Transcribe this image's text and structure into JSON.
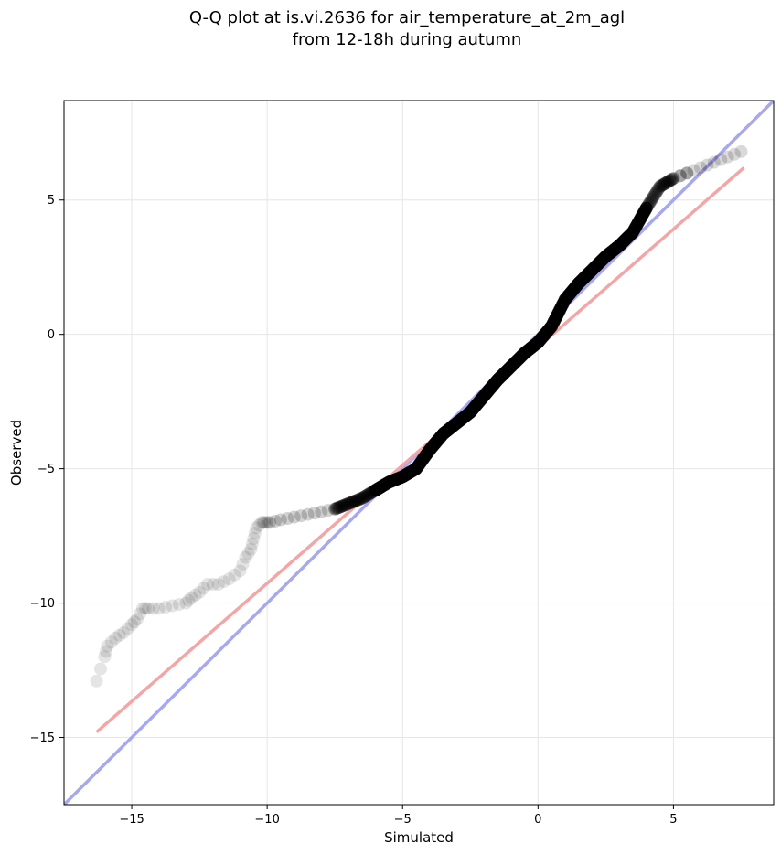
{
  "title_lines": [
    "Q-Q plot at is.vi.2636 for air_temperature_at_2m_agl",
    "from 12-18h during autumn"
  ],
  "chart_data": {
    "type": "scatter",
    "title": "Q-Q plot at is.vi.2636 for air_temperature_at_2m_agl from 12-18h during autumn",
    "xlabel": "Simulated",
    "ylabel": "Observed",
    "xlim": [
      -17.5,
      8.7
    ],
    "ylim": [
      -17.5,
      8.7
    ],
    "grid": true,
    "xticks": [
      -15,
      -10,
      -5,
      0,
      5
    ],
    "yticks": [
      -15,
      -10,
      -5,
      0,
      5
    ],
    "xtick_labels": [
      "−15",
      "−10",
      "−5",
      "0",
      "5"
    ],
    "ytick_labels": [
      "−15",
      "−10",
      "−5",
      "0",
      "5"
    ],
    "reference_lines": [
      {
        "kind": "identity",
        "color": "#a7a7f2",
        "x": [
          -17.5,
          8.7
        ],
        "y": [
          -17.5,
          8.7
        ]
      },
      {
        "kind": "fit",
        "color": "#f4a5a5",
        "x": [
          -16.3,
          7.6
        ],
        "y": [
          -14.8,
          6.2
        ]
      }
    ],
    "quantile_curve": {
      "color": "#000000",
      "x": [
        -16.3,
        -16.0,
        -15.9,
        -15.6,
        -15.3,
        -15.0,
        -14.8,
        -14.6,
        -14.4,
        -14.0,
        -13.5,
        -13.0,
        -12.8,
        -12.5,
        -12.2,
        -11.8,
        -11.4,
        -11.0,
        -10.8,
        -10.6,
        -10.5,
        -10.4,
        -10.2,
        -10.1,
        -9.9,
        -9.5,
        -9.0,
        -8.5,
        -8.0,
        -7.5,
        -7.0,
        -6.5,
        -6.0,
        -5.5,
        -5.0,
        -4.5,
        -4.0,
        -3.5,
        -3.0,
        -2.5,
        -2.0,
        -1.5,
        -1.0,
        -0.5,
        0.0,
        0.5,
        1.0,
        1.5,
        2.0,
        2.5,
        3.0,
        3.5,
        4.0,
        4.5,
        5.0,
        5.5,
        6.0,
        6.5,
        7.0,
        7.5
      ],
      "y": [
        -12.9,
        -12.0,
        -11.6,
        -11.3,
        -11.1,
        -10.8,
        -10.6,
        -10.2,
        -10.2,
        -10.2,
        -10.1,
        -10.0,
        -9.8,
        -9.6,
        -9.3,
        -9.3,
        -9.1,
        -8.8,
        -8.3,
        -8.0,
        -7.6,
        -7.2,
        -7.0,
        -7.0,
        -7.0,
        -6.9,
        -6.8,
        -6.7,
        -6.6,
        -6.5,
        -6.3,
        -6.1,
        -5.8,
        -5.5,
        -5.3,
        -5.0,
        -4.3,
        -3.7,
        -3.3,
        -2.9,
        -2.3,
        -1.7,
        -1.2,
        -0.7,
        -0.3,
        0.3,
        1.3,
        1.9,
        2.4,
        2.9,
        3.3,
        3.8,
        4.7,
        5.5,
        5.8,
        6.0,
        6.2,
        6.4,
        6.6,
        6.8
      ]
    }
  }
}
